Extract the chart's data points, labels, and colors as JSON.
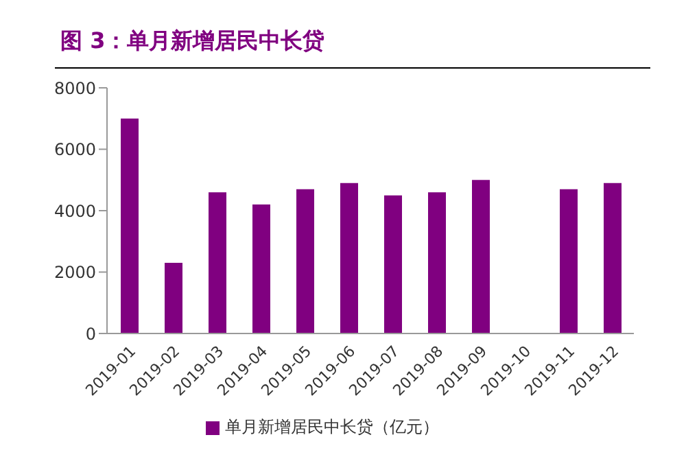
{
  "chart_data": {
    "type": "bar",
    "title": "图 3：单月新增居民中长贷",
    "categories": [
      "2019-01",
      "2019-02",
      "2019-03",
      "2019-04",
      "2019-05",
      "2019-06",
      "2019-07",
      "2019-08",
      "2019-09",
      "2019-10",
      "2019-11",
      "2019-12"
    ],
    "series": [
      {
        "name": "单月新增居民中长贷（亿元）",
        "color": "#800080",
        "values": [
          7000,
          2300,
          4600,
          4200,
          4700,
          4900,
          4500,
          4600,
          5000,
          null,
          4700,
          4900
        ]
      }
    ],
    "ylim": [
      0,
      8000
    ],
    "yticks": [
      0,
      2000,
      4000,
      6000,
      8000
    ],
    "grid": false,
    "legend": "bottom"
  }
}
